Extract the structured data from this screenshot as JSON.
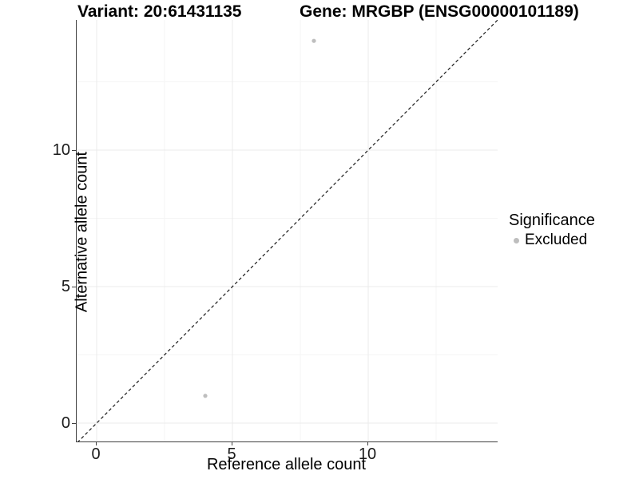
{
  "title": {
    "variant": "Variant: 20:61431135",
    "gene": "Gene: MRGBP (ENSG00000101189)"
  },
  "chart_data": {
    "type": "scatter",
    "title": "Variant: 20:61431135 / Gene: MRGBP (ENSG00000101189)",
    "xlabel": "Reference allele count",
    "ylabel": "Alternative allele count",
    "xlim": [
      -0.75,
      14.8
    ],
    "ylim": [
      -0.75,
      14.8
    ],
    "x_ticks": [
      0,
      5,
      10
    ],
    "y_ticks": [
      0,
      5,
      10
    ],
    "x_minor_ticks": [
      2.5,
      7.5,
      12.5
    ],
    "y_minor_ticks": [
      2.5,
      7.5,
      12.5
    ],
    "grid": "major and minor, light grey on white",
    "series": [
      {
        "name": "Excluded",
        "color": "#bebebe",
        "points": [
          {
            "x": 4,
            "y": 1
          },
          {
            "x": 8,
            "y": 14
          }
        ]
      }
    ],
    "identity_line": {
      "slope": 1,
      "intercept": 0,
      "style": "dashed",
      "color": "#1a1a1a"
    },
    "legend": {
      "title": "Significance",
      "position": "right",
      "entries": [
        {
          "label": "Excluded",
          "color": "#bebebe"
        }
      ]
    }
  },
  "colors": {
    "background": "#ffffff",
    "grid_major": "#ebebeb",
    "grid_minor": "#f5f5f5",
    "axis_line": "#404040",
    "tick_text": "#1a1a1a",
    "title_text": "#000000",
    "point_excluded": "#bebebe"
  }
}
